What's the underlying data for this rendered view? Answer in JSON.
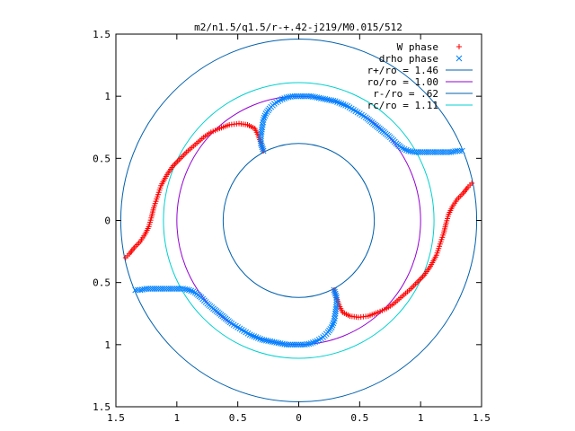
{
  "chart_data": {
    "type": "scatter",
    "title": "m2/n1.5/q1.5/r-+.42-j219/M0.015/512",
    "xlabel": "",
    "ylabel": "",
    "xlim": [
      -1.5,
      1.5
    ],
    "ylim": [
      -1.5,
      1.5
    ],
    "x_tick_values": [
      -1.5,
      -1,
      -0.5,
      0,
      0.5,
      1,
      1.5
    ],
    "x_tick_labels": [
      "1.5",
      "1",
      "0.5",
      "0",
      "0.5",
      "1",
      "1.5"
    ],
    "y_tick_values": [
      1.5,
      1,
      0.5,
      0,
      -0.5,
      -1,
      -1.5
    ],
    "y_tick_labels": [
      "1.5",
      "1",
      "0.5",
      "0",
      "0.5",
      "1",
      "1.5"
    ],
    "grid": false,
    "legend_position": "top-right",
    "series": [
      {
        "name": "W phase",
        "marker": "plus",
        "color": "#ff0000",
        "segments": [
          [
            [
              -1.42,
              -0.3
            ],
            [
              -1.39,
              -0.27
            ],
            [
              -1.35,
              -0.22
            ],
            [
              -1.3,
              -0.17
            ],
            [
              -1.26,
              -0.11
            ],
            [
              -1.23,
              -0.05
            ],
            [
              -1.21,
              0.02
            ],
            [
              -1.19,
              0.1
            ],
            [
              -1.16,
              0.19
            ],
            [
              -1.13,
              0.28
            ],
            [
              -1.08,
              0.37
            ],
            [
              -1.03,
              0.44
            ],
            [
              -0.97,
              0.5
            ],
            [
              -0.92,
              0.55
            ],
            [
              -0.85,
              0.61
            ],
            [
              -0.78,
              0.67
            ],
            [
              -0.72,
              0.71
            ],
            [
              -0.65,
              0.74
            ],
            [
              -0.57,
              0.77
            ],
            [
              -0.49,
              0.78
            ],
            [
              -0.42,
              0.77
            ],
            [
              -0.36,
              0.74
            ],
            [
              -0.33,
              0.68
            ],
            [
              -0.31,
              0.62
            ],
            [
              -0.29,
              0.56
            ]
          ],
          [
            [
              1.42,
              0.3
            ],
            [
              1.39,
              0.27
            ],
            [
              1.35,
              0.22
            ],
            [
              1.3,
              0.17
            ],
            [
              1.26,
              0.11
            ],
            [
              1.23,
              0.05
            ],
            [
              1.21,
              -0.02
            ],
            [
              1.19,
              -0.1
            ],
            [
              1.16,
              -0.19
            ],
            [
              1.13,
              -0.28
            ],
            [
              1.08,
              -0.37
            ],
            [
              1.03,
              -0.44
            ],
            [
              0.97,
              -0.5
            ],
            [
              0.92,
              -0.55
            ],
            [
              0.85,
              -0.61
            ],
            [
              0.78,
              -0.67
            ],
            [
              0.72,
              -0.71
            ],
            [
              0.65,
              -0.74
            ],
            [
              0.57,
              -0.77
            ],
            [
              0.49,
              -0.78
            ],
            [
              0.42,
              -0.77
            ],
            [
              0.36,
              -0.74
            ],
            [
              0.33,
              -0.68
            ],
            [
              0.31,
              -0.62
            ],
            [
              0.29,
              -0.56
            ]
          ]
        ]
      },
      {
        "name": "drho phase",
        "marker": "cross",
        "color": "#0080ff",
        "segments": [
          [
            [
              -0.29,
              0.56
            ],
            [
              -0.31,
              0.62
            ],
            [
              -0.31,
              0.68
            ],
            [
              -0.3,
              0.75
            ],
            [
              -0.29,
              0.81
            ],
            [
              -0.27,
              0.86
            ],
            [
              -0.24,
              0.9
            ],
            [
              -0.2,
              0.94
            ],
            [
              -0.15,
              0.97
            ],
            [
              -0.1,
              0.99
            ],
            [
              -0.05,
              1.0
            ],
            [
              0.0,
              1.0
            ],
            [
              0.05,
              1.0
            ],
            [
              0.1,
              1.0
            ],
            [
              0.15,
              0.99
            ],
            [
              0.2,
              0.98
            ],
            [
              0.25,
              0.97
            ],
            [
              0.3,
              0.96
            ],
            [
              0.35,
              0.94
            ],
            [
              0.4,
              0.92
            ],
            [
              0.45,
              0.89
            ],
            [
              0.5,
              0.86
            ],
            [
              0.55,
              0.83
            ],
            [
              0.6,
              0.79
            ],
            [
              0.65,
              0.75
            ],
            [
              0.7,
              0.71
            ],
            [
              0.75,
              0.67
            ],
            [
              0.8,
              0.62
            ],
            [
              0.85,
              0.58
            ],
            [
              0.9,
              0.56
            ],
            [
              0.95,
              0.55
            ],
            [
              1.0,
              0.55
            ],
            [
              1.05,
              0.55
            ],
            [
              1.1,
              0.55
            ],
            [
              1.15,
              0.55
            ],
            [
              1.2,
              0.55
            ],
            [
              1.25,
              0.55
            ],
            [
              1.3,
              0.56
            ],
            [
              1.34,
              0.56
            ]
          ],
          [
            [
              0.29,
              -0.56
            ],
            [
              0.31,
              -0.62
            ],
            [
              0.31,
              -0.68
            ],
            [
              0.3,
              -0.75
            ],
            [
              0.29,
              -0.81
            ],
            [
              0.27,
              -0.86
            ],
            [
              0.24,
              -0.9
            ],
            [
              0.2,
              -0.94
            ],
            [
              0.15,
              -0.97
            ],
            [
              0.1,
              -0.99
            ],
            [
              0.05,
              -1.0
            ],
            [
              0.0,
              -1.0
            ],
            [
              -0.05,
              -1.0
            ],
            [
              -0.1,
              -1.0
            ],
            [
              -0.15,
              -0.99
            ],
            [
              -0.2,
              -0.98
            ],
            [
              -0.25,
              -0.97
            ],
            [
              -0.3,
              -0.96
            ],
            [
              -0.35,
              -0.94
            ],
            [
              -0.4,
              -0.92
            ],
            [
              -0.45,
              -0.89
            ],
            [
              -0.5,
              -0.86
            ],
            [
              -0.55,
              -0.83
            ],
            [
              -0.6,
              -0.79
            ],
            [
              -0.65,
              -0.75
            ],
            [
              -0.7,
              -0.71
            ],
            [
              -0.75,
              -0.67
            ],
            [
              -0.8,
              -0.62
            ],
            [
              -0.85,
              -0.58
            ],
            [
              -0.9,
              -0.56
            ],
            [
              -0.95,
              -0.55
            ],
            [
              -1.0,
              -0.55
            ],
            [
              -1.05,
              -0.55
            ],
            [
              -1.1,
              -0.55
            ],
            [
              -1.15,
              -0.55
            ],
            [
              -1.2,
              -0.55
            ],
            [
              -1.25,
              -0.55
            ],
            [
              -1.3,
              -0.56
            ],
            [
              -1.34,
              -0.56
            ]
          ]
        ]
      },
      {
        "name": "r+/ro = 1.46",
        "kind": "circle",
        "radius": 1.46,
        "color": "#0060ad"
      },
      {
        "name": "ro/ro = 1.00",
        "kind": "circle",
        "radius": 1.0,
        "color": "#9400d3"
      },
      {
        "name": "r-/ro = .62",
        "kind": "circle",
        "radius": 0.62,
        "color": "#0060ad"
      },
      {
        "name": "rc/ro = 1.11",
        "kind": "circle",
        "radius": 1.11,
        "color": "#00d0d0"
      }
    ]
  }
}
